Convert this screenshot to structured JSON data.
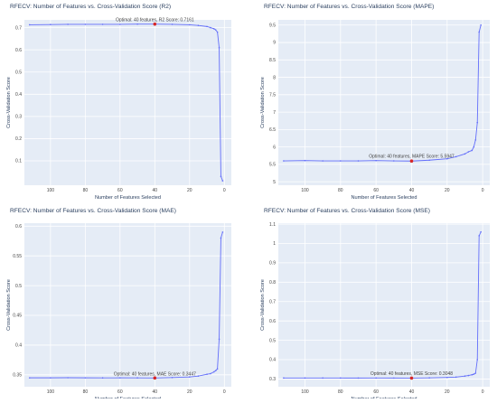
{
  "chart_data": [
    {
      "type": "line",
      "title": "RFECV: Number of Features vs. Cross-Validation Score (R2)",
      "xlabel": "Number of Features Selected",
      "ylabel": "Cross-Validation Score",
      "xlim": [
        115,
        -4
      ],
      "ylim": [
        -0.01,
        0.735
      ],
      "xticks": [
        100,
        80,
        60,
        40,
        20,
        0
      ],
      "yticks": [
        0.1,
        0.2,
        0.3,
        0.4,
        0.5,
        0.6,
        0.7
      ],
      "annotation": "Optimal: 40 features, R2 Score: 0.7161",
      "optimal": {
        "x": 40,
        "y": 0.7161
      },
      "anno_offset": 0.012,
      "series": [
        {
          "x": [
            112,
            100,
            90,
            80,
            70,
            60,
            50,
            40,
            30,
            20,
            15,
            10,
            8,
            6,
            5,
            4,
            3,
            2,
            1
          ],
          "y": [
            0.713,
            0.714,
            0.715,
            0.715,
            0.715,
            0.715,
            0.716,
            0.7161,
            0.715,
            0.713,
            0.71,
            0.705,
            0.7,
            0.695,
            0.69,
            0.68,
            0.61,
            0.03,
            0.01
          ]
        }
      ]
    },
    {
      "type": "line",
      "title": "RFECV: Number of Features vs. Cross-Validation Score (MAPE)",
      "xlabel": "Number of Features Selected",
      "ylabel": "Cross-Validation Score",
      "xlim": [
        115,
        -4
      ],
      "ylim": [
        4.9,
        9.65
      ],
      "xticks": [
        100,
        80,
        60,
        40,
        20,
        0
      ],
      "yticks": [
        5,
        5.5,
        6,
        6.5,
        7,
        7.5,
        8,
        8.5,
        9,
        9.5
      ],
      "annotation": "Optimal: 40 features, MAPE Score: 5.5947",
      "optimal": {
        "x": 40,
        "y": 5.5947
      },
      "anno_offset": 0.1,
      "series": [
        {
          "x": [
            112,
            100,
            90,
            80,
            70,
            60,
            50,
            40,
            30,
            20,
            15,
            10,
            8,
            6,
            5,
            4,
            3,
            2,
            1
          ],
          "y": [
            5.6,
            5.61,
            5.6,
            5.6,
            5.6,
            5.61,
            5.6,
            5.5947,
            5.62,
            5.66,
            5.72,
            5.8,
            5.86,
            5.9,
            6.0,
            6.2,
            6.7,
            9.3,
            9.5
          ]
        }
      ]
    },
    {
      "type": "line",
      "title": "RFECV: Number of Features vs. Cross-Validation Score (MAE)",
      "xlabel": "Number of Features Selected",
      "ylabel": "Cross-Validation Score",
      "xlim": [
        115,
        -4
      ],
      "ylim": [
        0.33,
        0.605
      ],
      "xticks": [
        100,
        80,
        60,
        40,
        20,
        0
      ],
      "yticks": [
        0.35,
        0.4,
        0.45,
        0.5,
        0.55,
        0.6
      ],
      "annotation": "Optimal: 40 features, MAE Score: 0.3447",
      "optimal": {
        "x": 40,
        "y": 0.3447
      },
      "anno_offset": 0.004,
      "series": [
        {
          "x": [
            112,
            100,
            90,
            80,
            70,
            60,
            50,
            40,
            30,
            20,
            15,
            10,
            8,
            6,
            5,
            4,
            3,
            2,
            1
          ],
          "y": [
            0.345,
            0.345,
            0.3452,
            0.345,
            0.3449,
            0.345,
            0.3449,
            0.3447,
            0.3455,
            0.3465,
            0.348,
            0.351,
            0.352,
            0.355,
            0.357,
            0.36,
            0.41,
            0.58,
            0.59
          ]
        }
      ]
    },
    {
      "type": "line",
      "title": "RFECV: Number of Features vs. Cross-Validation Score (MSE)",
      "xlabel": "Number of Features Selected",
      "ylabel": "Cross-Validation Score",
      "xlim": [
        115,
        -4
      ],
      "ylim": [
        0.26,
        1.105
      ],
      "xticks": [
        100,
        80,
        60,
        40,
        20,
        0
      ],
      "yticks": [
        0.3,
        0.4,
        0.5,
        0.6,
        0.7,
        0.8,
        0.9,
        1,
        1.1
      ],
      "annotation": "Optimal: 40 features, MSE Score: 0.3048",
      "optimal": {
        "x": 40,
        "y": 0.3048
      },
      "anno_offset": 0.015,
      "series": [
        {
          "x": [
            112,
            100,
            90,
            80,
            70,
            60,
            50,
            40,
            30,
            20,
            15,
            10,
            8,
            6,
            5,
            4,
            3,
            2,
            1
          ],
          "y": [
            0.305,
            0.305,
            0.3052,
            0.305,
            0.3049,
            0.305,
            0.3049,
            0.3048,
            0.306,
            0.308,
            0.31,
            0.315,
            0.318,
            0.322,
            0.325,
            0.33,
            0.4,
            1.04,
            1.06
          ]
        }
      ]
    }
  ],
  "colors": {
    "plot_bg": "#e5ecf6",
    "grid": "#ffffff",
    "line": "#636efa",
    "marker_optimal": "#d62728",
    "text": "#2a3f5f",
    "tick_text": "#444444"
  }
}
